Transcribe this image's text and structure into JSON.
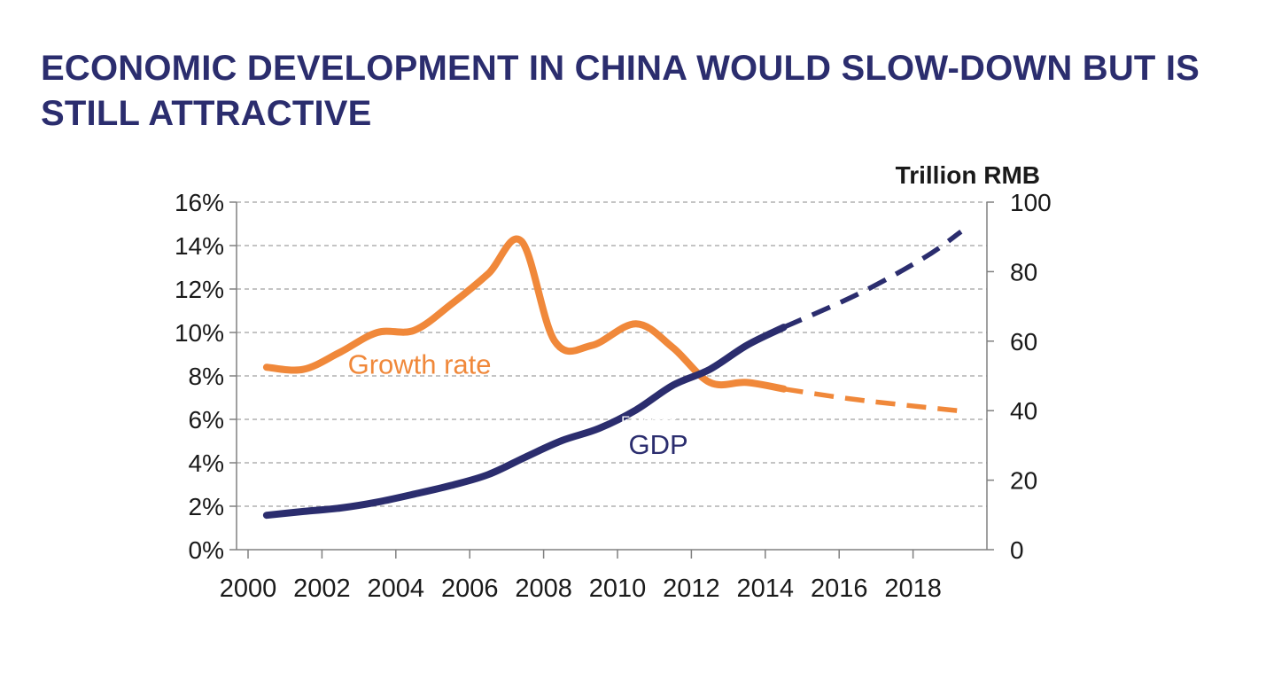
{
  "title": "ECONOMIC DEVELOPMENT IN CHINA WOULD SLOW-DOWN BUT IS STILL ATTRACTIVE",
  "colors": {
    "title": "#2b2d6e",
    "growth": "#f0883a",
    "gdp": "#2b2d6e",
    "grid": "#a0a0a0"
  },
  "chart_data": {
    "type": "line",
    "x": [
      2000,
      2001,
      2002,
      2003,
      2004,
      2005,
      2006,
      2007,
      2008,
      2009,
      2010,
      2011,
      2012,
      2013,
      2014,
      2015,
      2016,
      2017,
      2018,
      2019
    ],
    "xticks": [
      "2000",
      "2002",
      "2004",
      "2006",
      "2008",
      "2010",
      "2012",
      "2014",
      "2016",
      "2018"
    ],
    "xlim": [
      1999.5,
      2019.9
    ],
    "y_left": {
      "ticks": [
        "0%",
        "2%",
        "4%",
        "6%",
        "8%",
        "10%",
        "12%",
        "14%",
        "16%"
      ],
      "ylim": [
        0,
        16
      ]
    },
    "y_right": {
      "label": "Trillion RMB",
      "ticks": [
        "0",
        "20",
        "40",
        "60",
        "80",
        "100"
      ],
      "ylim": [
        0,
        100
      ]
    },
    "grid": true,
    "series": [
      {
        "name": "Growth rate",
        "axis": "left",
        "color": "#f0883a",
        "actual": [
          [
            2000.5,
            8.4
          ],
          [
            2001.5,
            8.3
          ],
          [
            2002.5,
            9.1
          ],
          [
            2003.5,
            10.0
          ],
          [
            2004.5,
            10.1
          ],
          [
            2005.5,
            11.3
          ],
          [
            2006.5,
            12.7
          ],
          [
            2007.4,
            14.2
          ],
          [
            2008.3,
            9.6
          ],
          [
            2009.3,
            9.4
          ],
          [
            2010.5,
            10.4
          ],
          [
            2011.5,
            9.3
          ],
          [
            2012.5,
            7.7
          ],
          [
            2013.5,
            7.7
          ],
          [
            2014.5,
            7.4
          ]
        ],
        "forecast": [
          [
            2014.5,
            7.4
          ],
          [
            2016.5,
            6.9
          ],
          [
            2019.2,
            6.4
          ]
        ]
      },
      {
        "name": "GDP",
        "axis": "right",
        "color": "#2b2d6e",
        "actual": [
          [
            2000.5,
            9.9
          ],
          [
            2001.5,
            11.0
          ],
          [
            2002.5,
            12.0
          ],
          [
            2003.5,
            13.7
          ],
          [
            2004.5,
            16.0
          ],
          [
            2005.5,
            18.5
          ],
          [
            2006.5,
            21.6
          ],
          [
            2007.5,
            26.6
          ],
          [
            2008.5,
            31.4
          ],
          [
            2009.5,
            34.9
          ],
          [
            2010.5,
            40.2
          ],
          [
            2011.5,
            47.3
          ],
          [
            2012.5,
            51.9
          ],
          [
            2013.5,
            58.8
          ],
          [
            2014.5,
            64.0
          ]
        ],
        "forecast": [
          [
            2014.5,
            64.0
          ],
          [
            2016.5,
            73.5
          ],
          [
            2018.3,
            84.0
          ],
          [
            2019.3,
            91.5
          ]
        ]
      }
    ],
    "annotations": [
      {
        "text": "Growth rate",
        "x": 2002.7,
        "y_left": 8.1,
        "color": "#f0883a"
      },
      {
        "text": "GDP",
        "x": 2010.3,
        "y_left": 4.4,
        "color": "#2b2d6e"
      },
      {
        "text": "Forecast",
        "x": 2010.1,
        "y_left": 5.7,
        "color": "#ffffff"
      }
    ]
  }
}
